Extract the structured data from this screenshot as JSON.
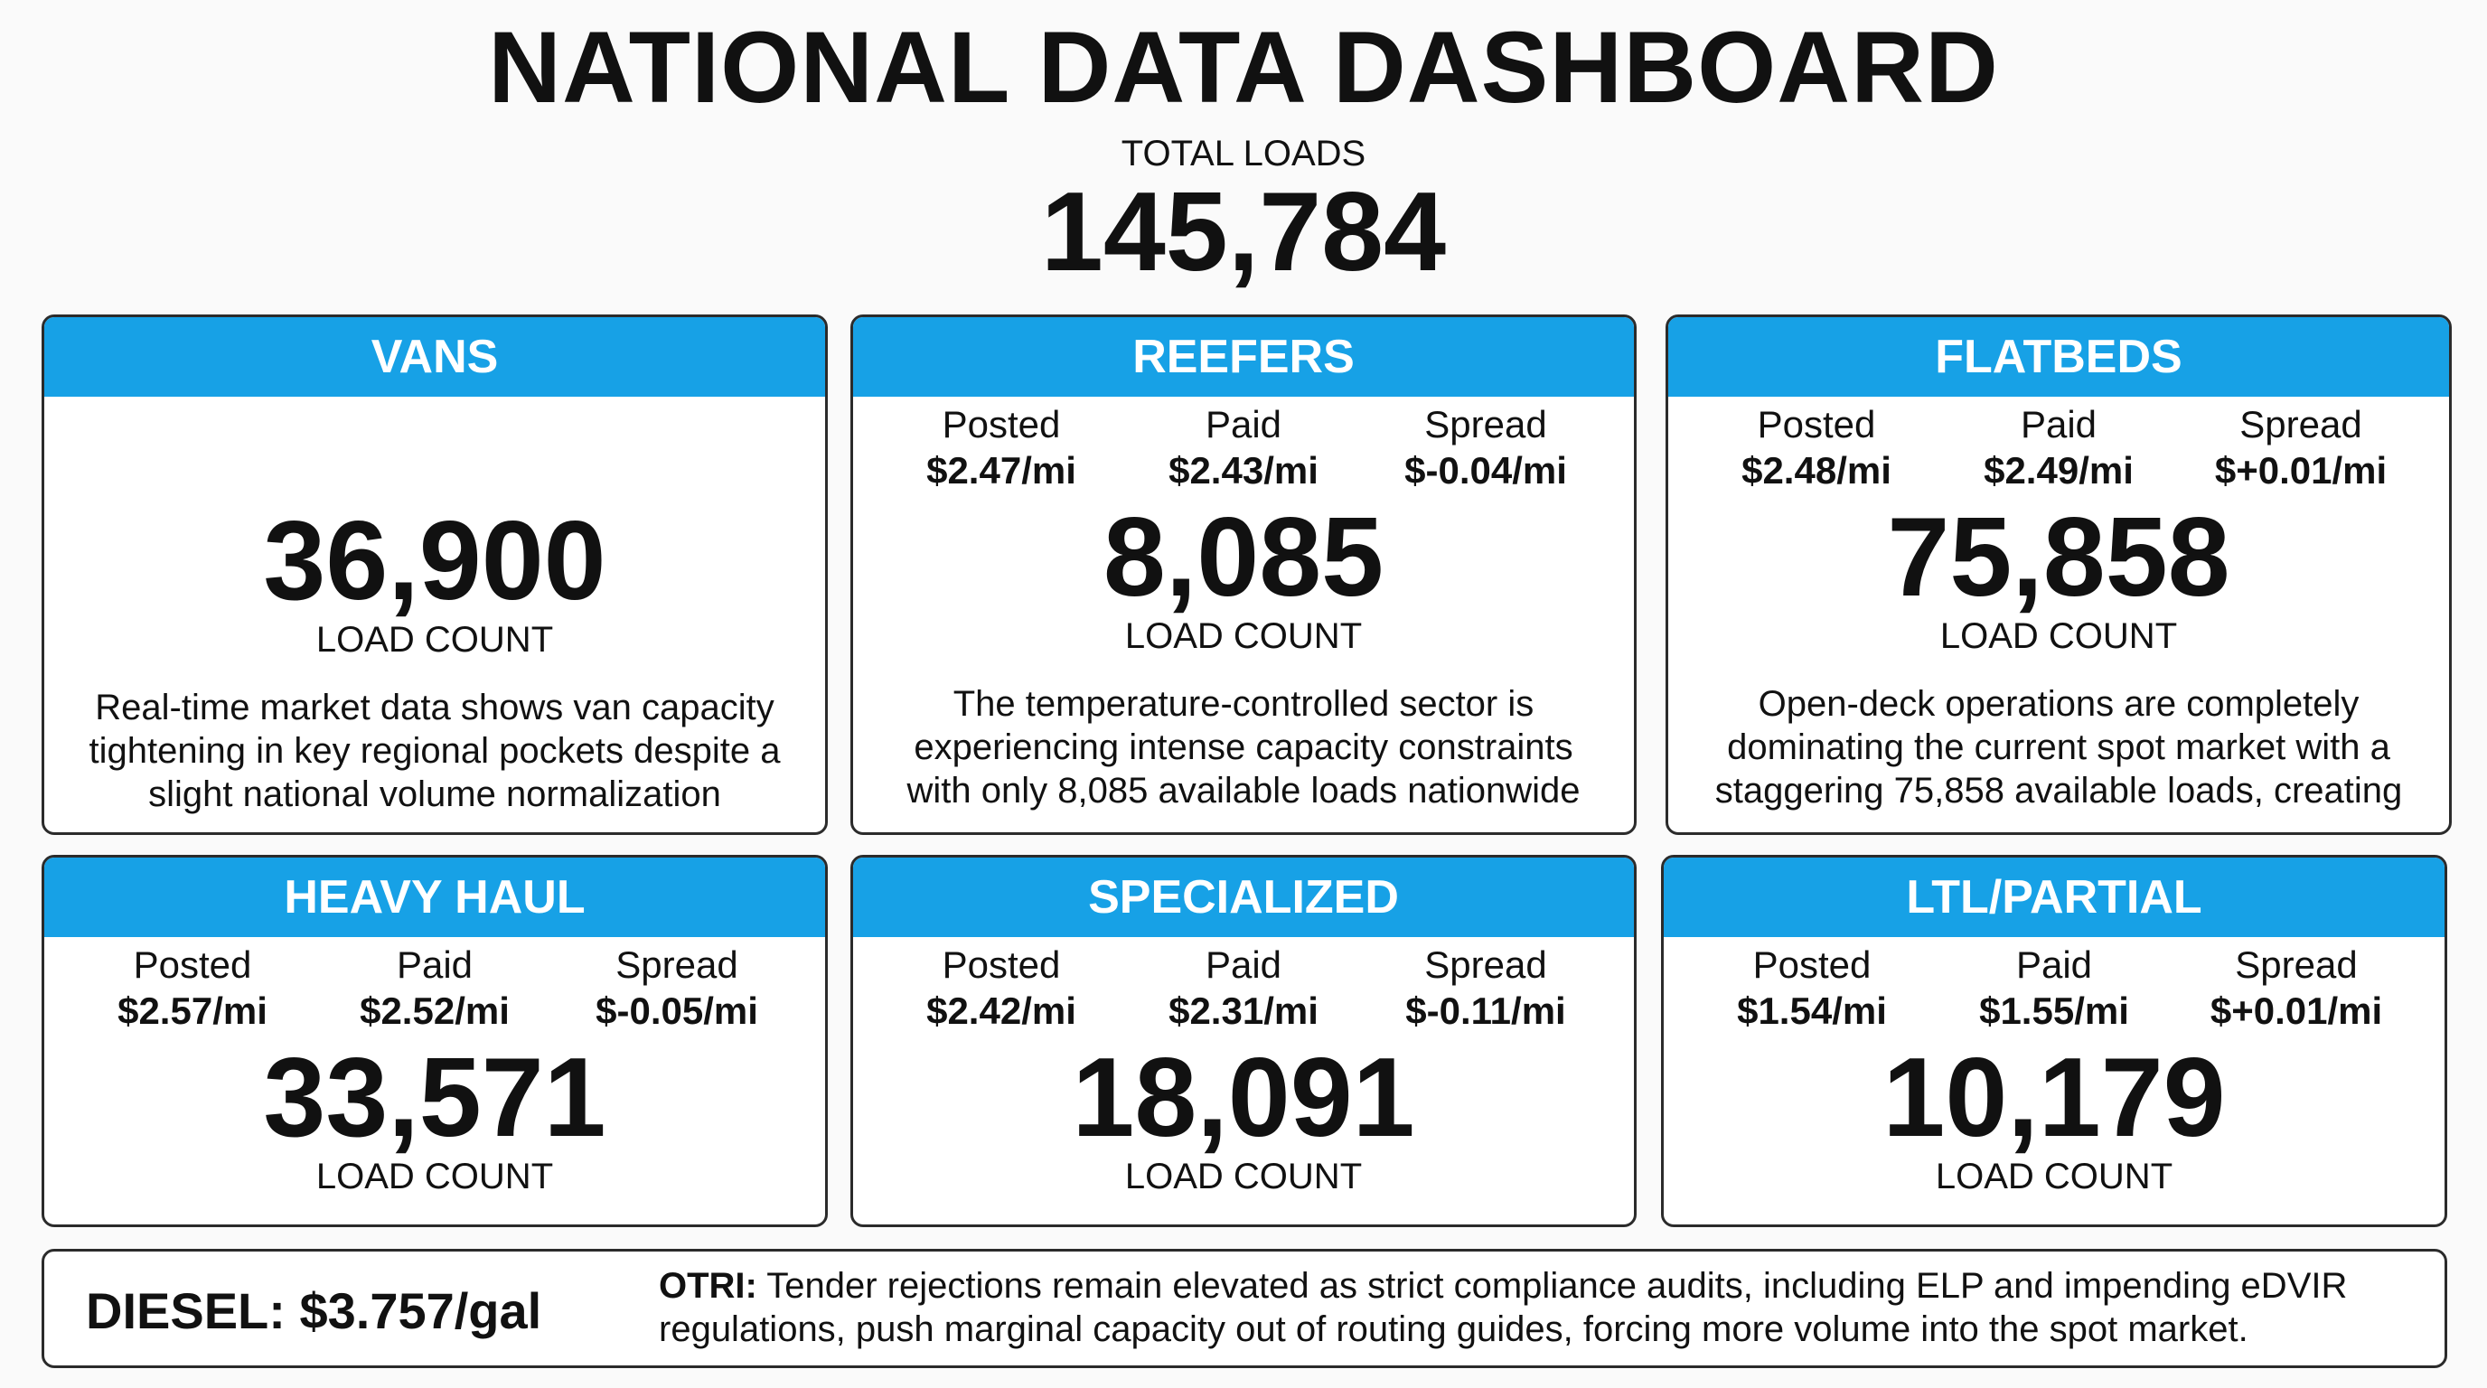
{
  "header": {
    "title": "NATIONAL DATA DASHBOARD",
    "total_label": "TOTAL LOADS",
    "total_value": "145,784"
  },
  "cards": {
    "vans": {
      "title": "VANS",
      "count": "36,900",
      "count_label": "LOAD COUNT",
      "description": "Real-time market data shows van capacity tightening in key regional pockets despite a slight national volume normalization"
    },
    "reefers": {
      "title": "REEFERS",
      "posted_label": "Posted",
      "posted": "$2.47/mi",
      "paid_label": "Paid",
      "paid": "$2.43/mi",
      "spread_label": "Spread",
      "spread": "$-0.04/mi",
      "count": "8,085",
      "count_label": "LOAD COUNT",
      "description": "The temperature-controlled sector is experiencing intense capacity constraints with only 8,085 available loads nationwide"
    },
    "flatbeds": {
      "title": "FLATBEDS",
      "posted_label": "Posted",
      "posted": "$2.48/mi",
      "paid_label": "Paid",
      "paid": "$2.49/mi",
      "spread_label": "Spread",
      "spread": "$+0.01/mi",
      "count": "75,858",
      "count_label": "LOAD COUNT",
      "description": "Open-deck operations are completely dominating the current spot market with a staggering 75,858 available loads, creating"
    },
    "heavy_haul": {
      "title": "HEAVY HAUL",
      "posted_label": "Posted",
      "posted": "$2.57/mi",
      "paid_label": "Paid",
      "paid": "$2.52/mi",
      "spread_label": "Spread",
      "spread": "$-0.05/mi",
      "count": "33,571",
      "count_label": "LOAD COUNT"
    },
    "specialized": {
      "title": "SPECIALIZED",
      "posted_label": "Posted",
      "posted": "$2.42/mi",
      "paid_label": "Paid",
      "paid": "$2.31/mi",
      "spread_label": "Spread",
      "spread": "$-0.11/mi",
      "count": "18,091",
      "count_label": "LOAD COUNT"
    },
    "ltl_partial": {
      "title": "LTL/PARTIAL",
      "posted_label": "Posted",
      "posted": "$1.54/mi",
      "paid_label": "Paid",
      "paid": "$1.55/mi",
      "spread_label": "Spread",
      "spread": "$+0.01/mi",
      "count": "10,179",
      "count_label": "LOAD COUNT"
    }
  },
  "footer": {
    "diesel": "DIESEL: $3.757/gal",
    "otri_label": "OTRI:",
    "otri_text": " Tender rejections remain elevated as strict compliance audits, including ELP and impending eDVIR regulations, push marginal capacity out of routing guides, forcing more volume into the spot market."
  },
  "colors": {
    "header_blue": "#17a1e6",
    "border": "#2b2b2b",
    "background": "#fafafa"
  }
}
